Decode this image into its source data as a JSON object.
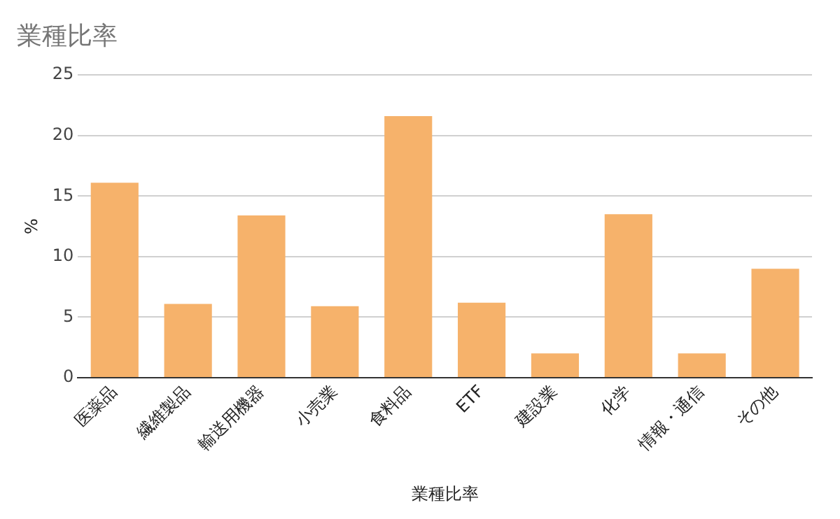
{
  "chart_data": {
    "type": "bar",
    "title": "業種比率",
    "xlabel": "業種比率",
    "ylabel": "%",
    "categories": [
      "医薬品",
      "繊維製品",
      "輸送用機器",
      "小売業",
      "食料品",
      "ETF",
      "建設業",
      "化学",
      "情報・通信",
      "その他"
    ],
    "series": [
      {
        "color": "#f6b26b",
        "values": [
          16.1,
          6.1,
          13.4,
          5.9,
          21.6,
          6.2,
          2.0,
          13.5,
          2.0,
          9.0
        ]
      }
    ],
    "ylim": [
      0,
      25
    ],
    "yticks": [
      0,
      5,
      10,
      15,
      20,
      25
    ],
    "grid": "y",
    "legend": false
  }
}
